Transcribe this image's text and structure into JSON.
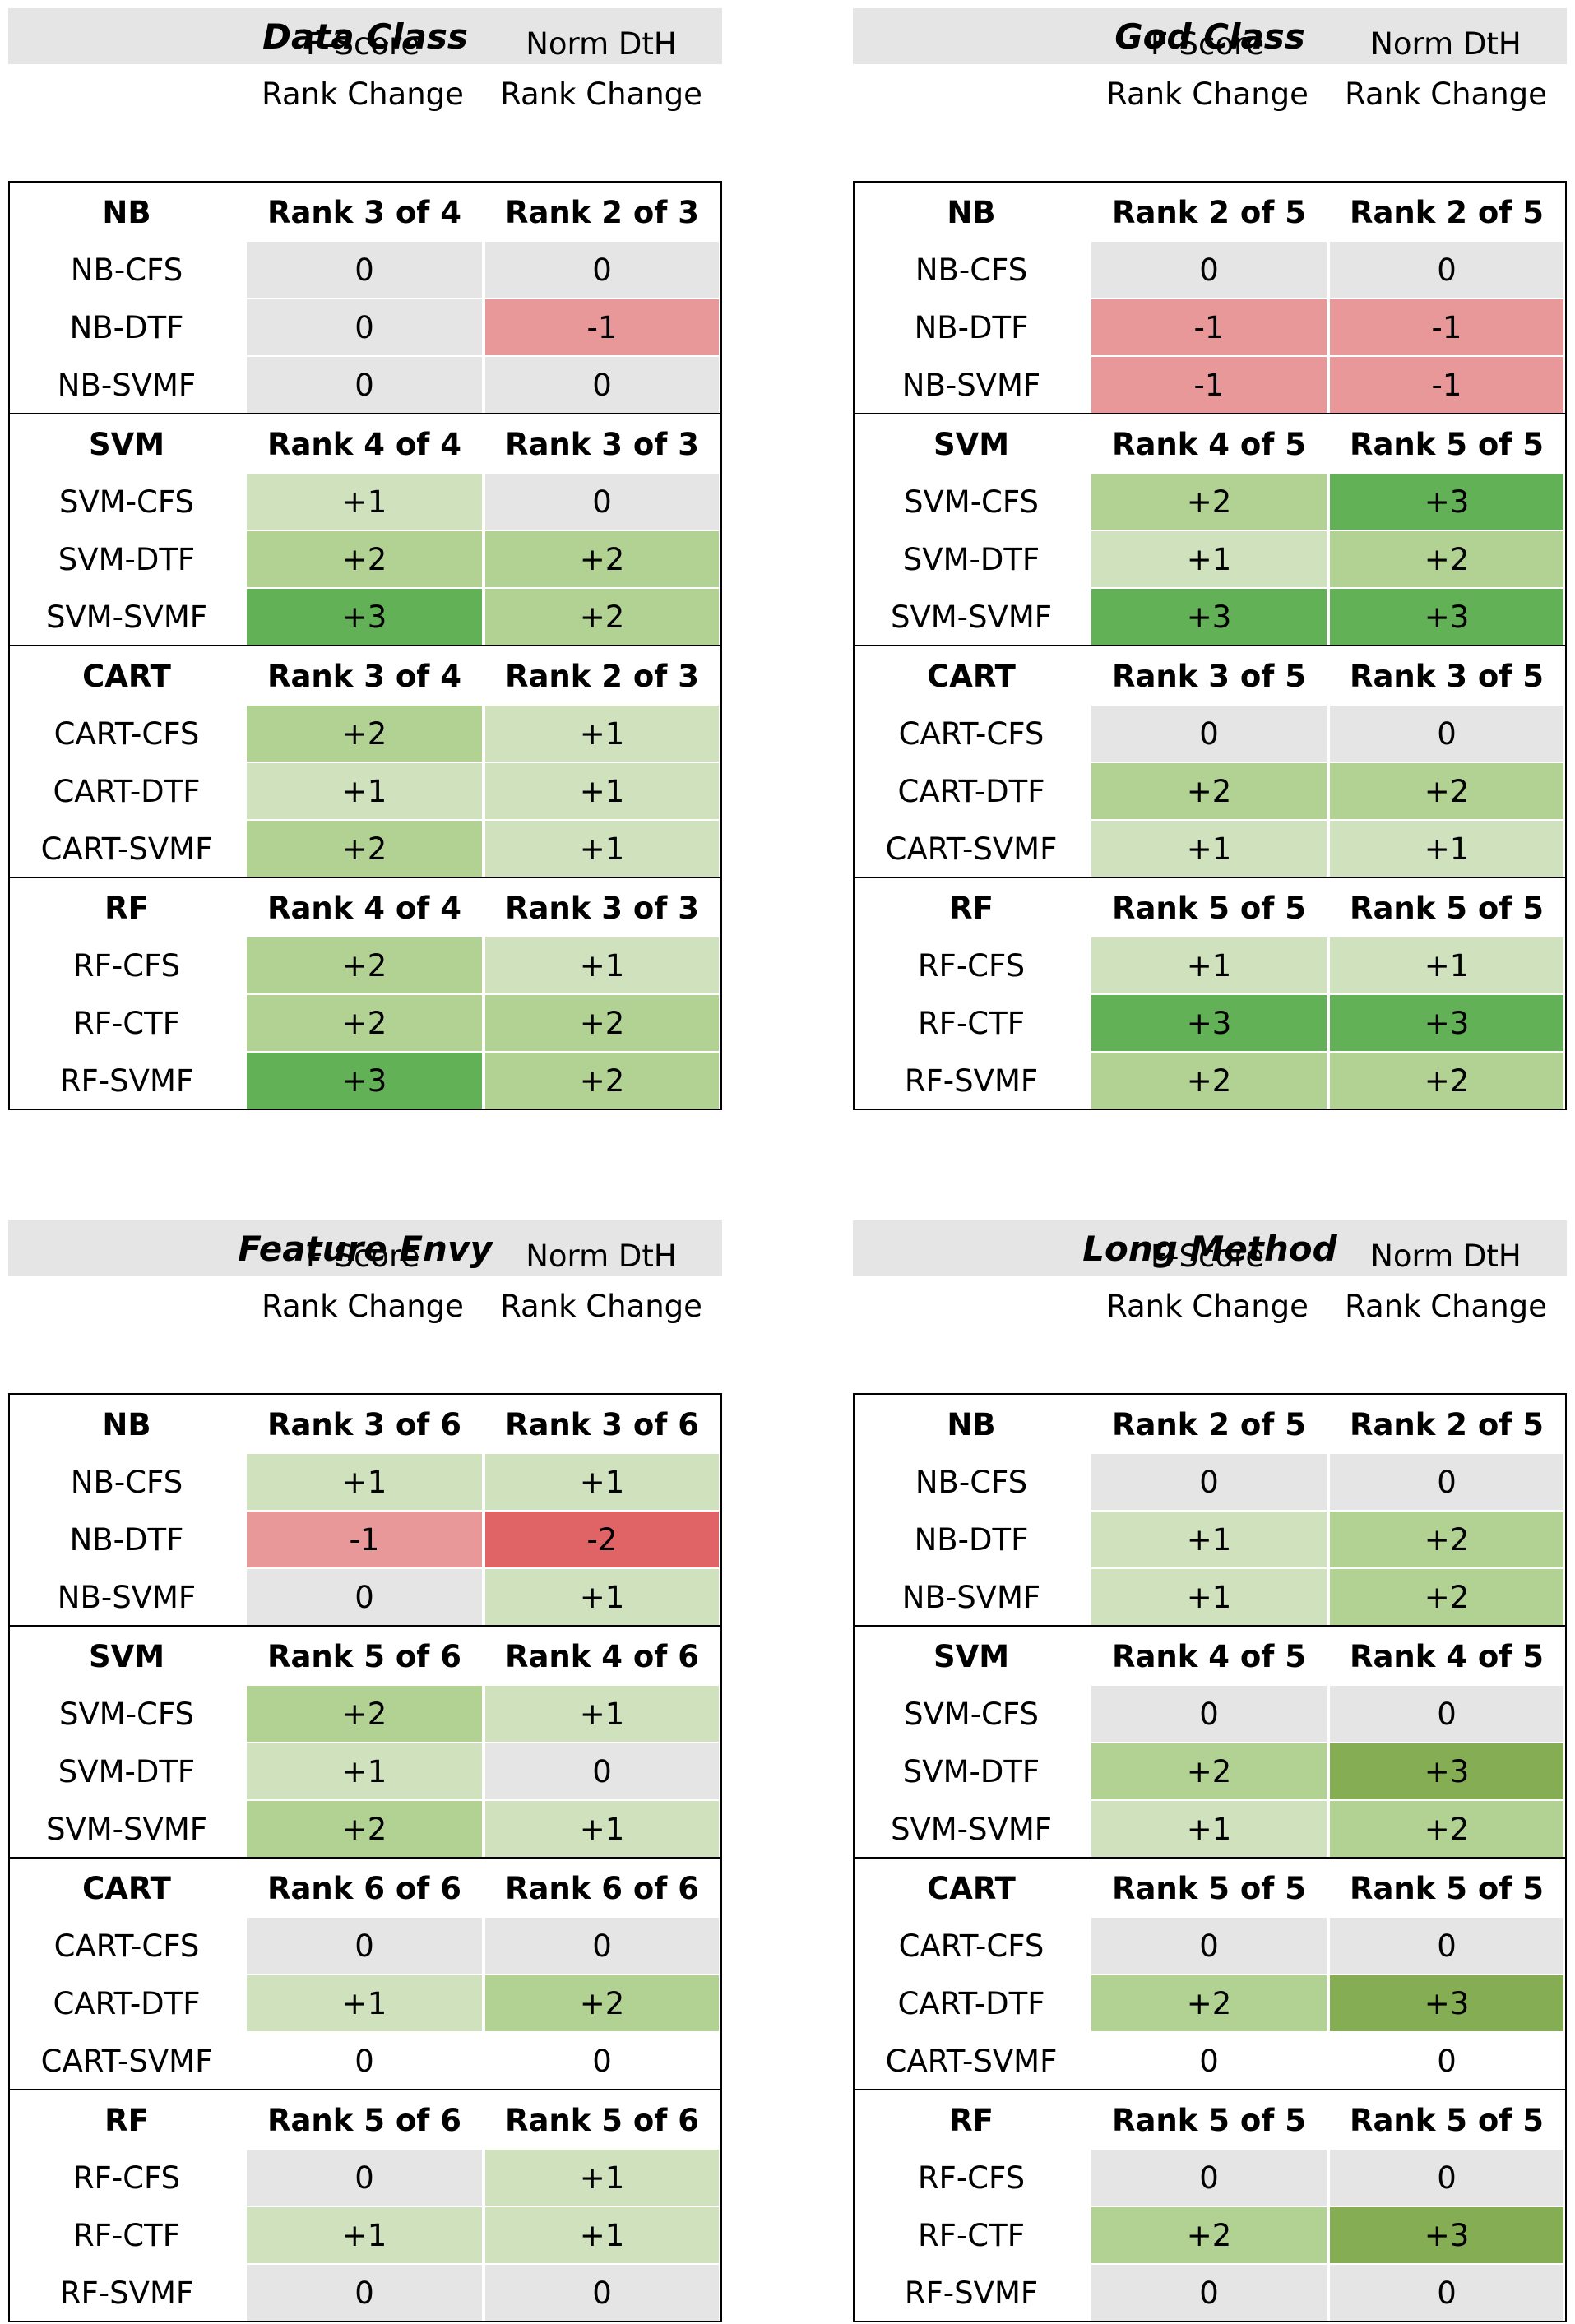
{
  "colors": {
    "neutral": "#e5e5e5",
    "plus1": "#cfe2bd",
    "plus2": "#b2d293",
    "plus3": "#63b157",
    "plus3_alt": "#85ad53",
    "minus1": "#e89898",
    "minus2": "#e06466",
    "none": "#ffffff"
  },
  "col_headers": {
    "fscore": [
      "F-Score",
      "Rank Change"
    ],
    "normdth": [
      "Norm DtH",
      "Rank Change"
    ]
  },
  "panels": [
    {
      "title": "Data Class",
      "groups": [
        {
          "name": "NB",
          "fs_rank": "Rank 3 of 4",
          "dth_rank": "Rank 2 of 3",
          "rows": [
            {
              "label": "NB-CFS",
              "fs": "0",
              "fs_c": "neutral",
              "dth": "0",
              "dth_c": "neutral"
            },
            {
              "label": "NB-DTF",
              "fs": "0",
              "fs_c": "neutral",
              "dth": "-1",
              "dth_c": "minus1"
            },
            {
              "label": "NB-SVMF",
              "fs": "0",
              "fs_c": "neutral",
              "dth": "0",
              "dth_c": "neutral"
            }
          ]
        },
        {
          "name": "SVM",
          "fs_rank": "Rank 4 of 4",
          "dth_rank": "Rank 3 of 3",
          "rows": [
            {
              "label": "SVM-CFS",
              "fs": "+1",
              "fs_c": "plus1",
              "dth": "0",
              "dth_c": "neutral"
            },
            {
              "label": "SVM-DTF",
              "fs": "+2",
              "fs_c": "plus2",
              "dth": "+2",
              "dth_c": "plus2"
            },
            {
              "label": "SVM-SVMF",
              "fs": "+3",
              "fs_c": "plus3",
              "dth": "+2",
              "dth_c": "plus2"
            }
          ]
        },
        {
          "name": "CART",
          "fs_rank": "Rank 3 of 4",
          "dth_rank": "Rank 2 of 3",
          "rows": [
            {
              "label": "CART-CFS",
              "fs": "+2",
              "fs_c": "plus2",
              "dth": "+1",
              "dth_c": "plus1"
            },
            {
              "label": "CART-DTF",
              "fs": "+1",
              "fs_c": "plus1",
              "dth": "+1",
              "dth_c": "plus1"
            },
            {
              "label": "CART-SVMF",
              "fs": "+2",
              "fs_c": "plus2",
              "dth": "+1",
              "dth_c": "plus1"
            }
          ]
        },
        {
          "name": "RF",
          "fs_rank": "Rank 4 of 4",
          "dth_rank": "Rank 3 of 3",
          "rows": [
            {
              "label": "RF-CFS",
              "fs": "+2",
              "fs_c": "plus2",
              "dth": "+1",
              "dth_c": "plus1"
            },
            {
              "label": "RF-CTF",
              "fs": "+2",
              "fs_c": "plus2",
              "dth": "+2",
              "dth_c": "plus2"
            },
            {
              "label": "RF-SVMF",
              "fs": "+3",
              "fs_c": "plus3",
              "dth": "+2",
              "dth_c": "plus2"
            }
          ]
        }
      ]
    },
    {
      "title": "God Class",
      "groups": [
        {
          "name": "NB",
          "fs_rank": "Rank 2 of 5",
          "dth_rank": "Rank 2 of 5",
          "rows": [
            {
              "label": "NB-CFS",
              "fs": "0",
              "fs_c": "neutral",
              "dth": "0",
              "dth_c": "neutral"
            },
            {
              "label": "NB-DTF",
              "fs": "-1",
              "fs_c": "minus1",
              "dth": "-1",
              "dth_c": "minus1"
            },
            {
              "label": "NB-SVMF",
              "fs": "-1",
              "fs_c": "minus1",
              "dth": "-1",
              "dth_c": "minus1"
            }
          ]
        },
        {
          "name": "SVM",
          "fs_rank": "Rank 4 of 5",
          "dth_rank": "Rank 5 of 5",
          "rows": [
            {
              "label": "SVM-CFS",
              "fs": "+2",
              "fs_c": "plus2",
              "dth": "+3",
              "dth_c": "plus3"
            },
            {
              "label": "SVM-DTF",
              "fs": "+1",
              "fs_c": "plus1",
              "dth": "+2",
              "dth_c": "plus2"
            },
            {
              "label": "SVM-SVMF",
              "fs": "+3",
              "fs_c": "plus3",
              "dth": "+3",
              "dth_c": "plus3"
            }
          ]
        },
        {
          "name": "CART",
          "fs_rank": "Rank 3 of 5",
          "dth_rank": "Rank 3 of 5",
          "rows": [
            {
              "label": "CART-CFS",
              "fs": "0",
              "fs_c": "neutral",
              "dth": "0",
              "dth_c": "neutral"
            },
            {
              "label": "CART-DTF",
              "fs": "+2",
              "fs_c": "plus2",
              "dth": "+2",
              "dth_c": "plus2"
            },
            {
              "label": "CART-SVMF",
              "fs": "+1",
              "fs_c": "plus1",
              "dth": "+1",
              "dth_c": "plus1"
            }
          ]
        },
        {
          "name": "RF",
          "fs_rank": "Rank 5 of 5",
          "dth_rank": "Rank 5 of 5",
          "rows": [
            {
              "label": "RF-CFS",
              "fs": "+1",
              "fs_c": "plus1",
              "dth": "+1",
              "dth_c": "plus1"
            },
            {
              "label": "RF-CTF",
              "fs": "+3",
              "fs_c": "plus3",
              "dth": "+3",
              "dth_c": "plus3"
            },
            {
              "label": "RF-SVMF",
              "fs": "+2",
              "fs_c": "plus2",
              "dth": "+2",
              "dth_c": "plus2"
            }
          ]
        }
      ]
    },
    {
      "title": "Feature Envy",
      "groups": [
        {
          "name": "NB",
          "fs_rank": "Rank 3 of 6",
          "dth_rank": "Rank 3 of 6",
          "rows": [
            {
              "label": "NB-CFS",
              "fs": "+1",
              "fs_c": "plus1",
              "dth": "+1",
              "dth_c": "plus1"
            },
            {
              "label": "NB-DTF",
              "fs": "-1",
              "fs_c": "minus1",
              "dth": "-2",
              "dth_c": "minus2"
            },
            {
              "label": "NB-SVMF",
              "fs": "0",
              "fs_c": "neutral",
              "dth": "+1",
              "dth_c": "plus1"
            }
          ]
        },
        {
          "name": "SVM",
          "fs_rank": "Rank 5 of 6",
          "dth_rank": "Rank 4 of 6",
          "rows": [
            {
              "label": "SVM-CFS",
              "fs": "+2",
              "fs_c": "plus2",
              "dth": "+1",
              "dth_c": "plus1"
            },
            {
              "label": "SVM-DTF",
              "fs": "+1",
              "fs_c": "plus1",
              "dth": "0",
              "dth_c": "neutral"
            },
            {
              "label": "SVM-SVMF",
              "fs": "+2",
              "fs_c": "plus2",
              "dth": "+1",
              "dth_c": "plus1"
            }
          ]
        },
        {
          "name": "CART",
          "fs_rank": "Rank 6 of 6",
          "dth_rank": "Rank 6 of 6",
          "rows": [
            {
              "label": "CART-CFS",
              "fs": "0",
              "fs_c": "neutral",
              "dth": "0",
              "dth_c": "neutral"
            },
            {
              "label": "CART-DTF",
              "fs": "+1",
              "fs_c": "plus1",
              "dth": "+2",
              "dth_c": "plus2"
            },
            {
              "label": "CART-SVMF",
              "fs": "0",
              "fs_c": "none",
              "dth": "0",
              "dth_c": "none"
            }
          ]
        },
        {
          "name": "RF",
          "fs_rank": "Rank 5 of 6",
          "dth_rank": "Rank 5 of 6",
          "rows": [
            {
              "label": "RF-CFS",
              "fs": "0",
              "fs_c": "neutral",
              "dth": "+1",
              "dth_c": "plus1"
            },
            {
              "label": "RF-CTF",
              "fs": "+1",
              "fs_c": "plus1",
              "dth": "+1",
              "dth_c": "plus1"
            },
            {
              "label": "RF-SVMF",
              "fs": "0",
              "fs_c": "neutral",
              "dth": "0",
              "dth_c": "neutral"
            }
          ]
        }
      ]
    },
    {
      "title": "Long Method",
      "groups": [
        {
          "name": "NB",
          "fs_rank": "Rank 2 of 5",
          "dth_rank": "Rank 2 of 5",
          "rows": [
            {
              "label": "NB-CFS",
              "fs": "0",
              "fs_c": "neutral",
              "dth": "0",
              "dth_c": "neutral"
            },
            {
              "label": "NB-DTF",
              "fs": "+1",
              "fs_c": "plus1",
              "dth": "+2",
              "dth_c": "plus2"
            },
            {
              "label": "NB-SVMF",
              "fs": "+1",
              "fs_c": "plus1",
              "dth": "+2",
              "dth_c": "plus2"
            }
          ]
        },
        {
          "name": "SVM",
          "fs_rank": "Rank 4 of 5",
          "dth_rank": "Rank 4 of 5",
          "rows": [
            {
              "label": "SVM-CFS",
              "fs": "0",
              "fs_c": "neutral",
              "dth": "0",
              "dth_c": "neutral"
            },
            {
              "label": "SVM-DTF",
              "fs": "+2",
              "fs_c": "plus2",
              "dth": "+3",
              "dth_c": "plus3_alt"
            },
            {
              "label": "SVM-SVMF",
              "fs": "+1",
              "fs_c": "plus1",
              "dth": "+2",
              "dth_c": "plus2"
            }
          ]
        },
        {
          "name": "CART",
          "fs_rank": "Rank 5 of 5",
          "dth_rank": "Rank 5 of 5",
          "rows": [
            {
              "label": "CART-CFS",
              "fs": "0",
              "fs_c": "neutral",
              "dth": "0",
              "dth_c": "neutral"
            },
            {
              "label": "CART-DTF",
              "fs": "+2",
              "fs_c": "plus2",
              "dth": "+3",
              "dth_c": "plus3_alt"
            },
            {
              "label": "CART-SVMF",
              "fs": "0",
              "fs_c": "none",
              "dth": "0",
              "dth_c": "none"
            }
          ]
        },
        {
          "name": "RF",
          "fs_rank": "Rank 5 of 5",
          "dth_rank": "Rank 5 of 5",
          "rows": [
            {
              "label": "RF-CFS",
              "fs": "0",
              "fs_c": "neutral",
              "dth": "0",
              "dth_c": "neutral"
            },
            {
              "label": "RF-CTF",
              "fs": "+2",
              "fs_c": "plus2",
              "dth": "+3",
              "dth_c": "plus3_alt"
            },
            {
              "label": "RF-SVMF",
              "fs": "0",
              "fs_c": "neutral",
              "dth": "0",
              "dth_c": "neutral"
            }
          ]
        }
      ]
    }
  ]
}
